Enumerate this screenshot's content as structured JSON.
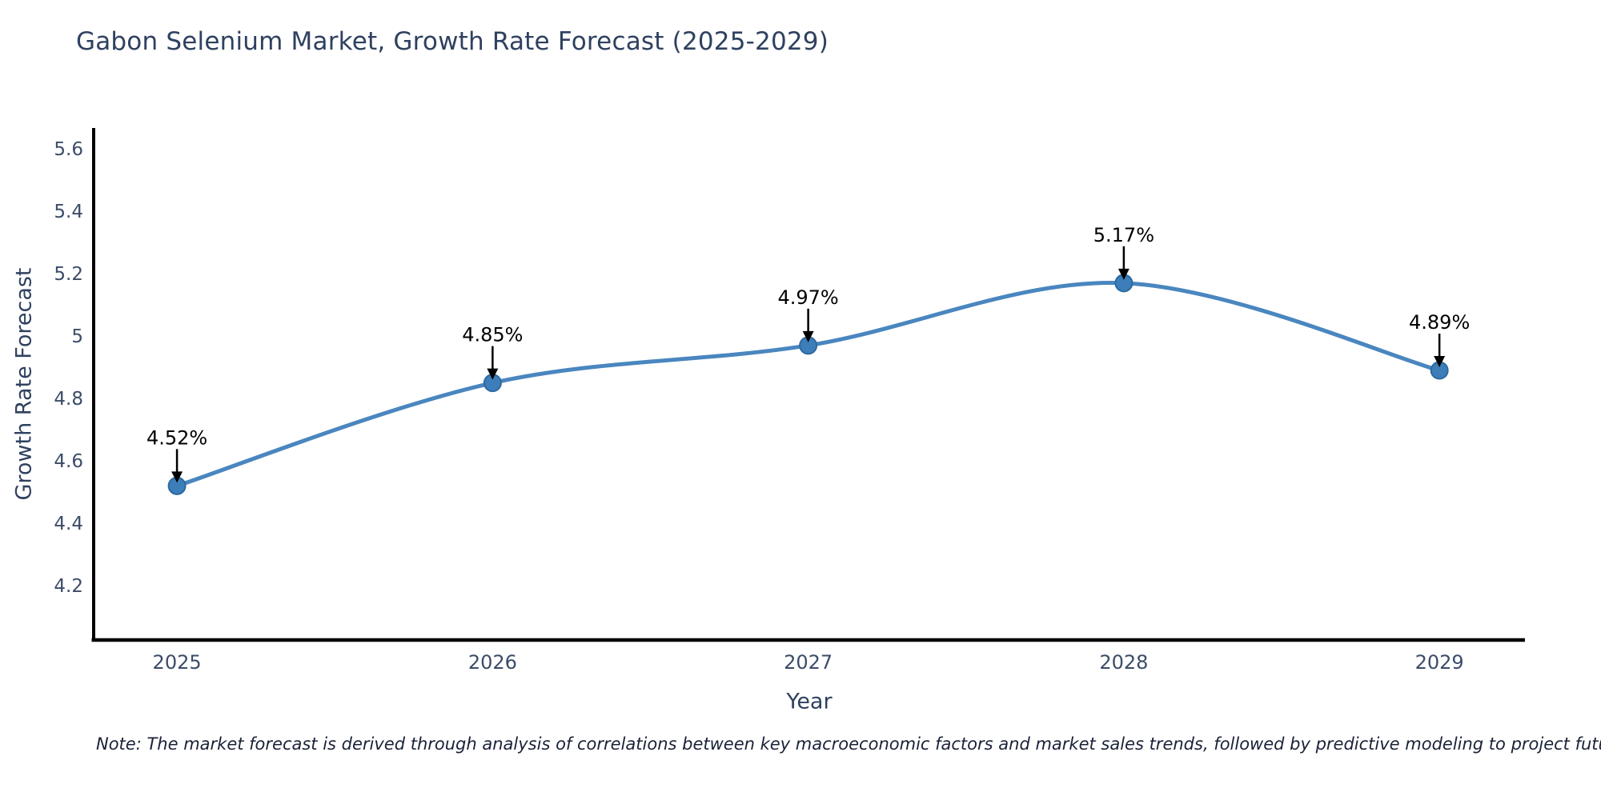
{
  "title": "Gabon Selenium Market, Growth Rate Forecast (2025-2029)",
  "note": "Note: The market forecast is derived through analysis of correlations between key macroeconomic factors and market sales trends, followed by predictive modeling to project future sales",
  "chart_data": {
    "type": "line",
    "title": "Gabon Selenium Market, Growth Rate Forecast (2025-2029)",
    "xlabel": "Year",
    "ylabel": "Growth Rate Forecast",
    "x": [
      2025,
      2026,
      2027,
      2028,
      2029
    ],
    "series": [
      {
        "name": "Growth Rate Forecast",
        "values": [
          4.52,
          4.85,
          4.97,
          5.17,
          4.89
        ],
        "point_labels": [
          "4.52%",
          "4.85%",
          "4.97%",
          "5.17%",
          "4.89%"
        ]
      }
    ],
    "curve": "spline",
    "grid": false,
    "legend_position": "none",
    "xlim": [
      2024.736,
      2029.271
    ],
    "ylim": [
      4.026,
      5.667
    ],
    "yticks": {
      "values": [
        4.2,
        4.4,
        4.6,
        4.8,
        5.0,
        5.2,
        5.4,
        5.6
      ],
      "labels": [
        "4.2",
        "4.4",
        "4.6",
        "4.8",
        "5",
        "5.2",
        "5.4",
        "5.6"
      ]
    },
    "xticks": {
      "values": [
        2025,
        2026,
        2027,
        2028,
        2029
      ],
      "labels": [
        "2025",
        "2026",
        "2027",
        "2028",
        "2029"
      ]
    },
    "colors": {
      "line": "#4a86bf",
      "marker_fill": "#3d7db9",
      "marker_stroke": "#2d6aa0",
      "annotation": "#000000",
      "axis_spine": "#000000",
      "tick_label": "#3c4c68",
      "title": "#2f4160",
      "note": "#1a2238"
    }
  }
}
